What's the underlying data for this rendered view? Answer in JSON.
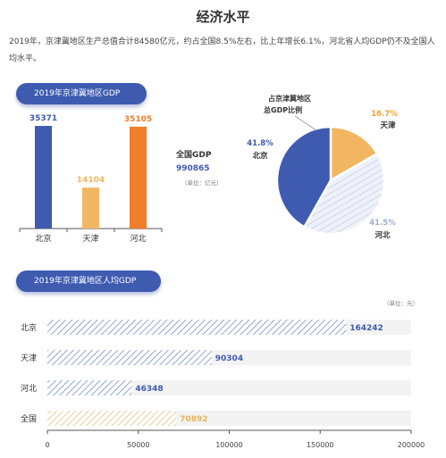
{
  "page": {
    "title": "经济水平",
    "intro": "2019年，京津冀地区生产总值合计84580亿元，约占全国8.5%左右，比上年增长6.1%，河北省人均GDP仍不及全国人均水平。"
  },
  "chart_data": [
    {
      "type": "bar",
      "title": "2019年京津冀地区GDP",
      "categories": [
        "北京",
        "天津",
        "河北"
      ],
      "values": [
        35371,
        14104,
        35105
      ],
      "colors": [
        "#3e5bb0",
        "#f2b662",
        "#f07d2a"
      ],
      "ylim": [
        0,
        40000
      ],
      "annotation": {
        "label": "全国GDP",
        "value": "990865",
        "unit": "（单位：亿元）"
      }
    },
    {
      "type": "pie",
      "title": "占京津冀地区\n总GDP比例",
      "labels": [
        "天津",
        "河北",
        "北京"
      ],
      "values": [
        16.7,
        41.5,
        41.8
      ],
      "value_labels": [
        "16.7%",
        "41.5%",
        "41.8%"
      ],
      "colors": [
        "#f2b662",
        "#dfe5f3",
        "#3e5bb0"
      ]
    },
    {
      "type": "bar",
      "orientation": "horizontal",
      "title": "2019年京津冀地区人均GDP",
      "unit": "（单位：元）",
      "categories": [
        "北京",
        "天津",
        "河北",
        "全国"
      ],
      "values": [
        164242,
        90304,
        46348,
        70892
      ],
      "colors": [
        "#8a9ac9",
        "#8a9ac9",
        "#8a9ac9",
        "#e8c98a"
      ],
      "xlim": [
        0,
        200000
      ],
      "xticks": [
        0,
        50000,
        100000,
        150000,
        200000
      ],
      "grid": false
    }
  ]
}
